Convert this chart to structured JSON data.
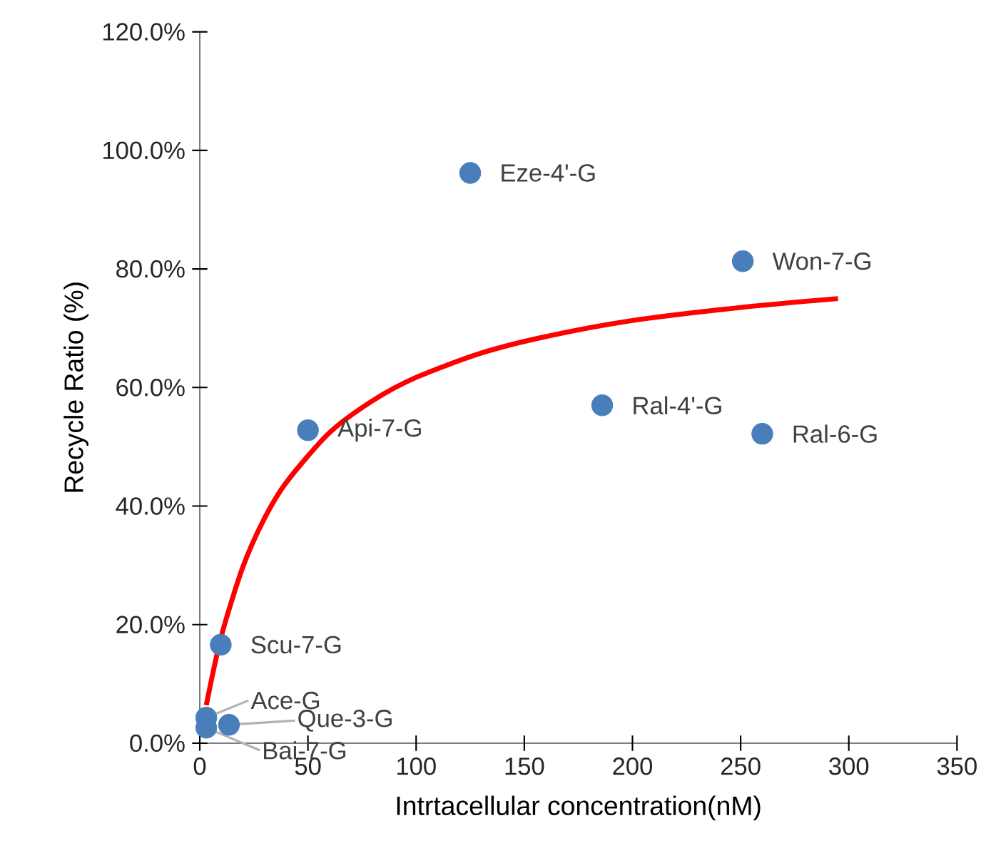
{
  "chart_data": {
    "type": "scatter",
    "xlabel": "Intrtacellular concentration(nM)",
    "ylabel": "Recycle Ratio (%)",
    "xlim": [
      0,
      350
    ],
    "xticks": [
      0,
      50,
      100,
      150,
      200,
      250,
      300,
      350
    ],
    "ylim": [
      0,
      120
    ],
    "yticks": [
      {
        "value": 0,
        "label": "0.0%"
      },
      {
        "value": 20,
        "label": "20.0%"
      },
      {
        "value": 40,
        "label": "40.0%"
      },
      {
        "value": 60,
        "label": "60.0%"
      },
      {
        "value": 80,
        "label": "80.0%"
      },
      {
        "value": 100,
        "label": "100.0%"
      },
      {
        "value": 120,
        "label": "120.0%"
      }
    ],
    "grid": false,
    "marker": "circle",
    "series": [
      {
        "color": "#4a7ebb",
        "x": [
          125,
          251,
          50,
          186,
          260,
          9.7,
          3,
          13.5,
          3
        ],
        "values": [
          96.2,
          81.3,
          52.8,
          57.0,
          52.2,
          16.6,
          4.3,
          3.1,
          2.6
        ]
      },
      {
        "type": "line",
        "color": "#ff0000",
        "line_style": "solid",
        "marker": "none",
        "x": [
          3,
          10,
          20,
          30,
          40,
          60,
          80,
          100,
          130,
          160,
          200,
          250,
          295
        ],
        "values": [
          6.4,
          18.1,
          29.8,
          38.0,
          44.0,
          52.4,
          57.8,
          61.7,
          65.8,
          68.6,
          71.3,
          73.5,
          75.0
        ]
      }
    ],
    "annotations": [
      {
        "text": "Eze-4'-G",
        "x": 125,
        "y": 96.2
      },
      {
        "text": "Won-7-G",
        "x": 251,
        "y": 81.3
      },
      {
        "text": "Api-7-G",
        "x": 50,
        "y": 52.8
      },
      {
        "text": "Ral-4'-G",
        "x": 186,
        "y": 57.0
      },
      {
        "text": "Ral-6-G",
        "x": 260,
        "y": 52.2
      },
      {
        "text": "Scu-7-G",
        "x": 9.7,
        "y": 16.6
      },
      {
        "text": "Ace-G",
        "x": 3,
        "y": 4.3
      },
      {
        "text": "Que-3-G",
        "x": 13.5,
        "y": 3.1
      },
      {
        "text": "Bai-7-G",
        "x": 3,
        "y": 2.6
      }
    ]
  }
}
